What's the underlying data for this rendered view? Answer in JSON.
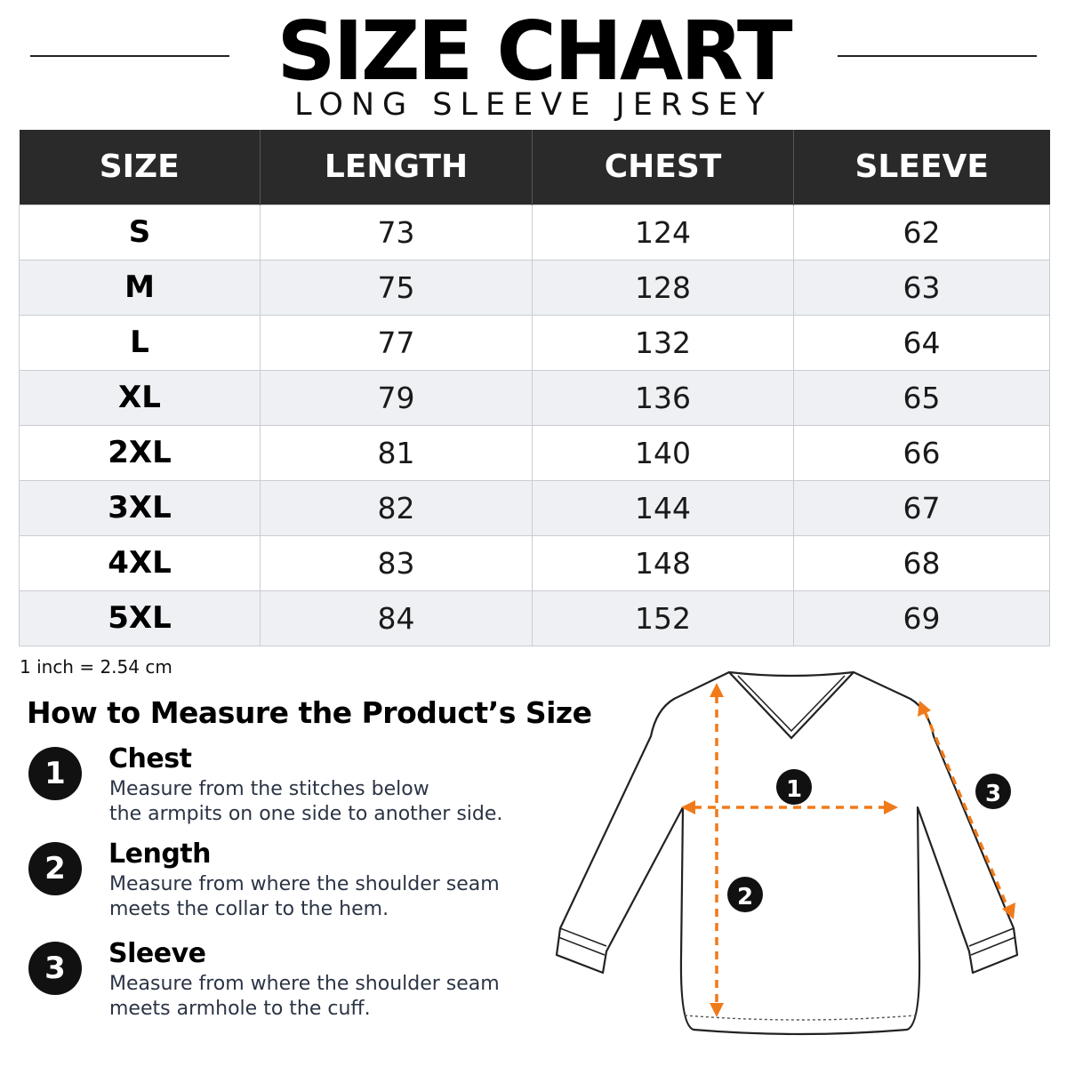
{
  "header": {
    "title": "SIZE CHART",
    "subtitle": "LONG SLEEVE JERSEY"
  },
  "table": {
    "columns": [
      "SIZE",
      "LENGTH",
      "CHEST",
      "SLEEVE"
    ],
    "rows": [
      {
        "size": "S",
        "length": "73",
        "chest": "124",
        "sleeve": "62"
      },
      {
        "size": "M",
        "length": "75",
        "chest": "128",
        "sleeve": "63"
      },
      {
        "size": "L",
        "length": "77",
        "chest": "132",
        "sleeve": "64"
      },
      {
        "size": "XL",
        "length": "79",
        "chest": "136",
        "sleeve": "65"
      },
      {
        "size": "2XL",
        "length": "81",
        "chest": "140",
        "sleeve": "66"
      },
      {
        "size": "3XL",
        "length": "82",
        "chest": "144",
        "sleeve": "67"
      },
      {
        "size": "4XL",
        "length": "83",
        "chest": "148",
        "sleeve": "68"
      },
      {
        "size": "5XL",
        "length": "84",
        "chest": "152",
        "sleeve": "69"
      }
    ]
  },
  "note": "1 inch = 2.54 cm",
  "howto": {
    "title": "How to Measure the Product’s Size",
    "steps": [
      {
        "number": "1",
        "name": "Chest",
        "desc_line1": "Measure from the stitches below",
        "desc_line2": "the armpits on one side to another side."
      },
      {
        "number": "2",
        "name": "Length",
        "desc_line1": "Measure from where the shoulder seam",
        "desc_line2": "meets the collar to the hem."
      },
      {
        "number": "3",
        "name": "Sleeve",
        "desc_line1": "Measure from where the shoulder seam",
        "desc_line2": "meets armhole to the cuff."
      }
    ]
  },
  "diagram": {
    "markers": [
      "1",
      "2",
      "3"
    ]
  },
  "colors": {
    "header_bg": "#2a2a2a",
    "row_alt": "#eef0f3",
    "arrow": "#f07a1a",
    "badge": "#111111"
  }
}
